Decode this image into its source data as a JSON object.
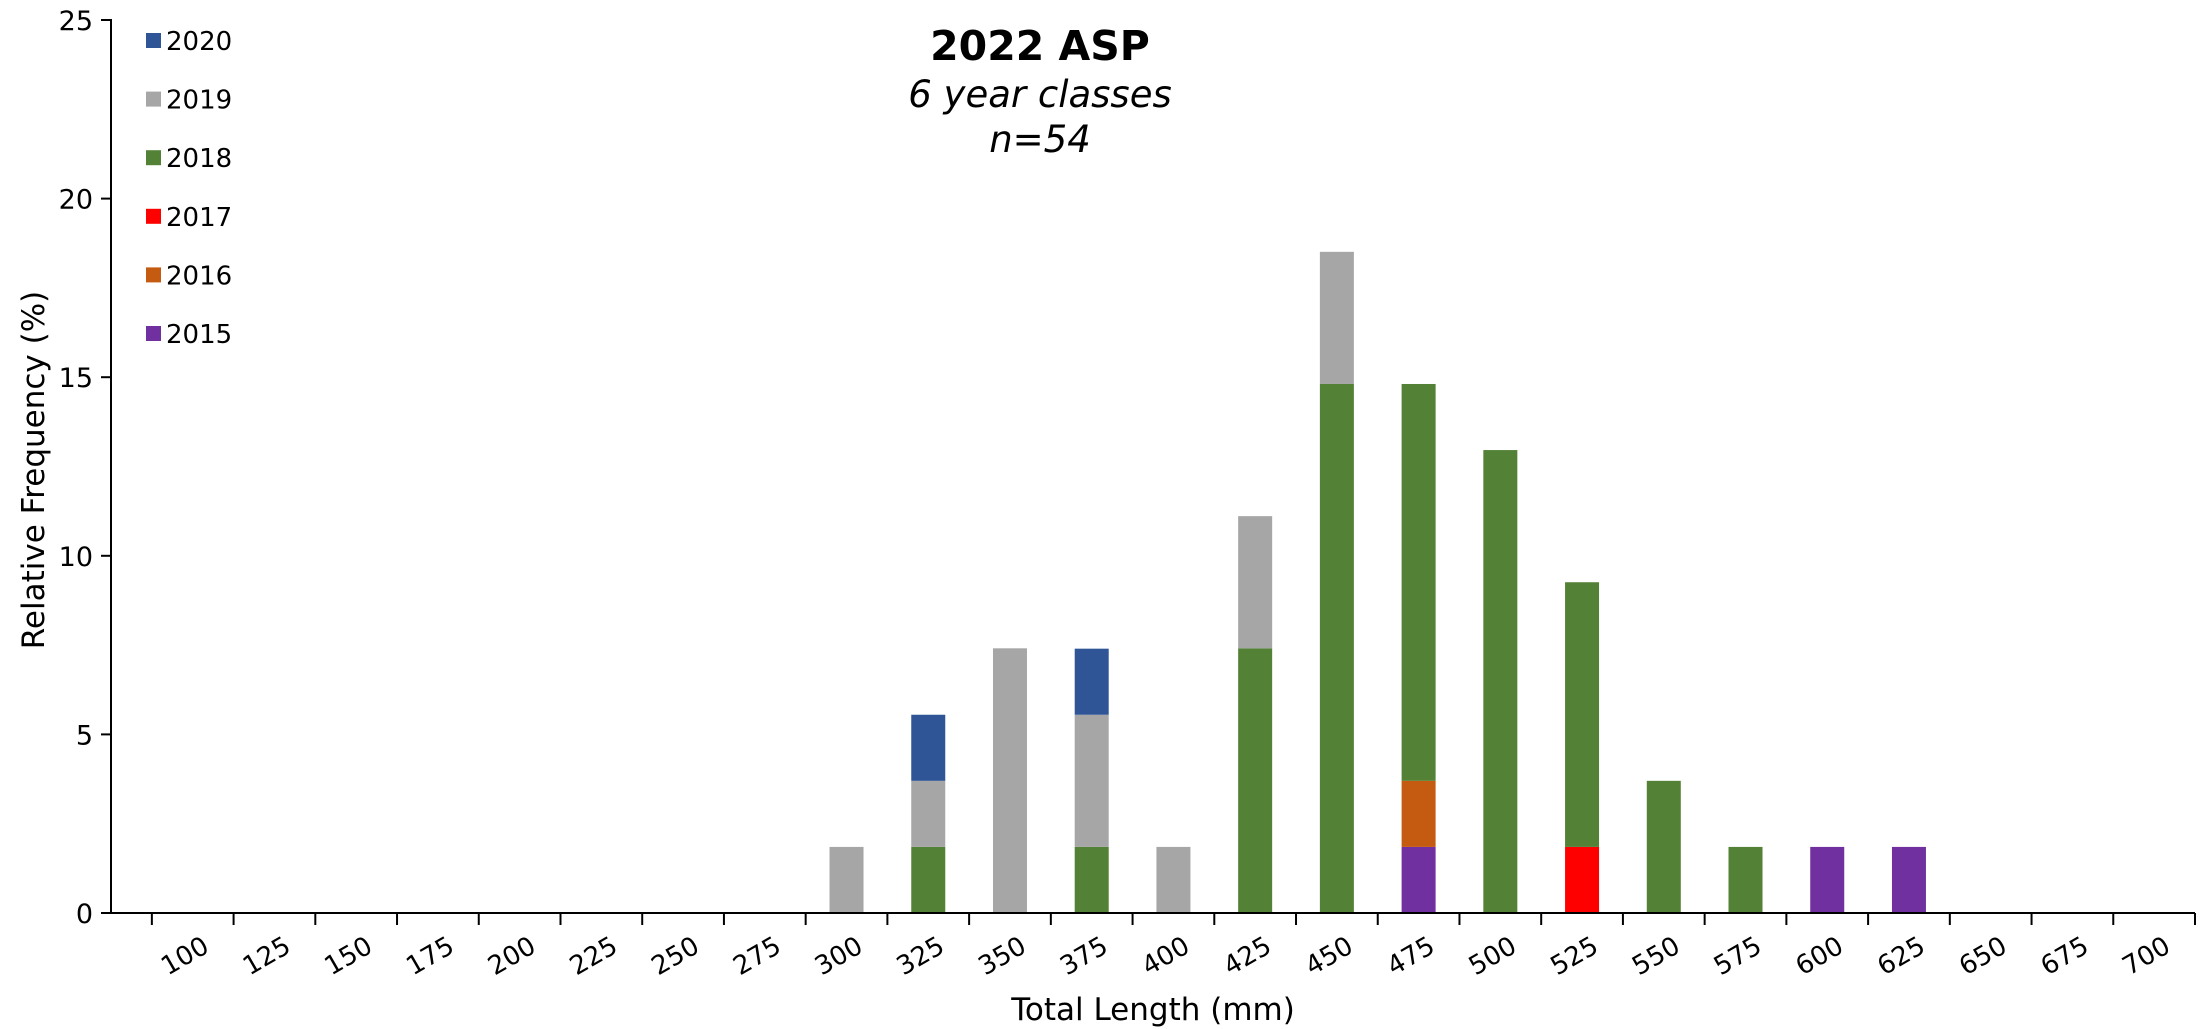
{
  "chart_data": {
    "type": "bar",
    "stacked": true,
    "title": "2022 ASP",
    "subtitle_lines": [
      "6 year classes",
      "n=54"
    ],
    "xlabel": "Total Length (mm)",
    "ylabel": "Relative Frequency (%)",
    "ylim": [
      0,
      25
    ],
    "y_ticks": [
      0,
      5,
      10,
      15,
      20,
      25
    ],
    "grid": false,
    "legend_position": "top-left",
    "categories": [
      "100",
      "125",
      "150",
      "175",
      "200",
      "225",
      "250",
      "275",
      "300",
      "325",
      "350",
      "375",
      "400",
      "425",
      "450",
      "475",
      "500",
      "525",
      "550",
      "575",
      "600",
      "625",
      "650",
      "675",
      "700"
    ],
    "series": [
      {
        "name": "2015",
        "color": "#7030a0",
        "values": [
          0,
          0,
          0,
          0,
          0,
          0,
          0,
          0,
          0,
          0,
          0,
          0,
          0,
          0,
          0,
          1.85,
          0,
          0,
          0,
          0,
          1.85,
          1.85,
          0,
          0,
          0
        ]
      },
      {
        "name": "2016",
        "color": "#c55a11",
        "values": [
          0,
          0,
          0,
          0,
          0,
          0,
          0,
          0,
          0,
          0,
          0,
          0,
          0,
          0,
          0,
          1.85,
          0,
          0,
          0,
          0,
          0,
          0,
          0,
          0,
          0
        ]
      },
      {
        "name": "2017",
        "color": "#ff0000",
        "values": [
          0,
          0,
          0,
          0,
          0,
          0,
          0,
          0,
          0,
          0,
          0,
          0,
          0,
          0,
          0,
          0,
          0,
          1.85,
          0,
          0,
          0,
          0,
          0,
          0,
          0
        ]
      },
      {
        "name": "2018",
        "color": "#538135",
        "values": [
          0,
          0,
          0,
          0,
          0,
          0,
          0,
          0,
          0,
          1.85,
          0,
          1.85,
          0,
          7.41,
          14.81,
          11.11,
          12.96,
          7.41,
          3.7,
          1.85,
          0,
          0,
          0,
          0,
          0
        ]
      },
      {
        "name": "2019",
        "color": "#a6a6a6",
        "values": [
          0,
          0,
          0,
          0,
          0,
          0,
          0,
          0,
          1.85,
          1.85,
          7.41,
          3.7,
          1.85,
          3.7,
          3.7,
          0,
          0,
          0,
          0,
          0,
          0,
          0,
          0,
          0,
          0
        ]
      },
      {
        "name": "2020",
        "color": "#2f5597",
        "values": [
          0,
          0,
          0,
          0,
          0,
          0,
          0,
          0,
          0,
          1.85,
          0,
          1.85,
          0,
          0,
          0,
          0,
          0,
          0,
          0,
          0,
          0,
          0,
          0,
          0,
          0
        ]
      }
    ],
    "legend_order": [
      "2020",
      "2019",
      "2018",
      "2017",
      "2016",
      "2015"
    ]
  }
}
